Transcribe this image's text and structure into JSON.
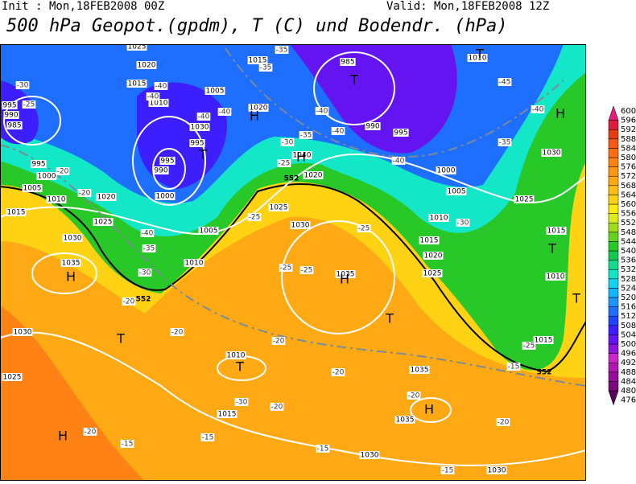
{
  "header": {
    "init": "Init : Mon,18FEB2008 00Z",
    "valid": "Valid: Mon,18FEB2008 12Z",
    "title": "500 hPa Geopot.(gpdm), T (C) und Bodendr. (hPa)"
  },
  "colorbar": {
    "levels": [
      476,
      480,
      484,
      488,
      492,
      496,
      500,
      504,
      508,
      512,
      516,
      520,
      524,
      528,
      532,
      536,
      540,
      544,
      548,
      552,
      556,
      560,
      564,
      568,
      572,
      576,
      580,
      584,
      588,
      592,
      596,
      600
    ],
    "colors": [
      "#5a005a",
      "#7a0a7a",
      "#960f96",
      "#b019b0",
      "#c828c8",
      "#8c14dc",
      "#6414f0",
      "#3c1eff",
      "#1e46ff",
      "#1e6eff",
      "#1e96ff",
      "#14b4ff",
      "#14d2f0",
      "#14e6c8",
      "#14dc8c",
      "#14c850",
      "#28c828",
      "#64d21e",
      "#a0dc1e",
      "#dceb1e",
      "#ffeb14",
      "#ffd214",
      "#ffbe14",
      "#ffaa14",
      "#ff9614",
      "#ff8214",
      "#ff6e14",
      "#f55a14",
      "#e63c14",
      "#dc1e3c",
      "#e61e78"
    ]
  },
  "map": {
    "pressure_labels": [
      "1025",
      "1020",
      "1015",
      "1010",
      "995",
      "990",
      "985",
      "995",
      "1000",
      "1005",
      "1010",
      "1015",
      "1020",
      "1025",
      "1030",
      "1035",
      "1030",
      "1025",
      "1005",
      "1030",
      "995",
      "995",
      "990",
      "1000",
      "1005",
      "1010",
      "1015",
      "1020",
      "1040",
      "1020",
      "985",
      "990",
      "995",
      "1000",
      "1005",
      "1010",
      "1025",
      "1030",
      "1035",
      "1010",
      "1015",
      "1020",
      "1025",
      "1025",
      "1030",
      "1015",
      "1010",
      "1015",
      "1010",
      "1035",
      "1035",
      "1015",
      "1030",
      "1030"
    ],
    "temp_labels": [
      "-35",
      "-30",
      "-25",
      "-40",
      "-40",
      "-40",
      "-40",
      "-35",
      "-30",
      "-25",
      "-35",
      "-40",
      "-40",
      "-45",
      "-40",
      "-35",
      "-40",
      "-30",
      "-25",
      "-25",
      "-25",
      "-25",
      "-20",
      "-20",
      "-40",
      "-35",
      "-30",
      "-20",
      "-20",
      "-20",
      "-20",
      "-20",
      "-20",
      "-20",
      "-20",
      "-15",
      "-15",
      "-15",
      "-15",
      "-15",
      "-25",
      "-30"
    ],
    "centers": [
      "H",
      "T",
      "T",
      "H",
      "H",
      "T",
      "H",
      "T",
      "H",
      "T",
      "H",
      "H",
      "T",
      "T",
      "T"
    ],
    "contour_labels": [
      "552",
      "552",
      "552"
    ]
  }
}
